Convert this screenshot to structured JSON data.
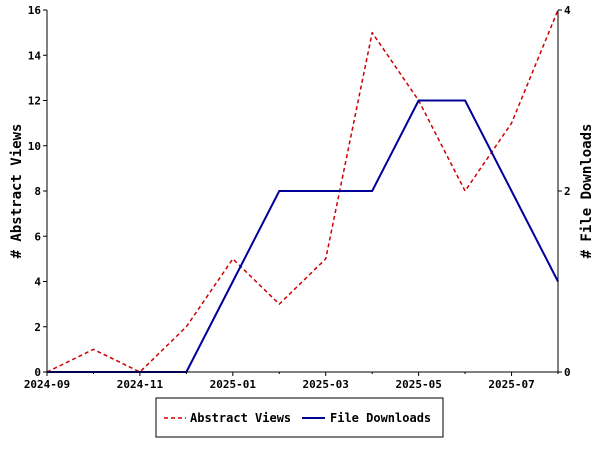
{
  "chart_data": {
    "type": "line",
    "x": [
      "2024-09",
      "2024-10",
      "2024-11",
      "2024-12",
      "2025-01",
      "2025-02",
      "2025-03",
      "2025-04",
      "2025-05",
      "2025-06",
      "2025-07",
      "2025-08"
    ],
    "x_tick_labels": [
      "2024-09",
      "2024-11",
      "2025-01",
      "2025-03",
      "2025-05",
      "2025-07"
    ],
    "ylabel_left": "# Abstract Views",
    "ylabel_right": "# File Downloads",
    "ylim_left": [
      0,
      16
    ],
    "ylim_right": [
      0,
      4
    ],
    "y_ticks_left": [
      "0",
      "2",
      "4",
      "6",
      "8",
      "10",
      "12",
      "14",
      "16"
    ],
    "y_ticks_right": [
      "0",
      "2",
      "4"
    ],
    "grid": false,
    "legend_position": "bottom-center",
    "series": [
      {
        "name": "Abstract Views",
        "axis": "left",
        "color": "#cc0000",
        "style": "dashed",
        "values": [
          0,
          1,
          0,
          2,
          5,
          3,
          5,
          15,
          12,
          8,
          11,
          16
        ]
      },
      {
        "name": "File Downloads",
        "axis": "right",
        "color": "#000099",
        "style": "solid",
        "values": [
          0,
          0,
          0,
          0,
          1,
          2,
          2,
          2,
          3,
          3,
          2,
          1
        ]
      }
    ]
  }
}
